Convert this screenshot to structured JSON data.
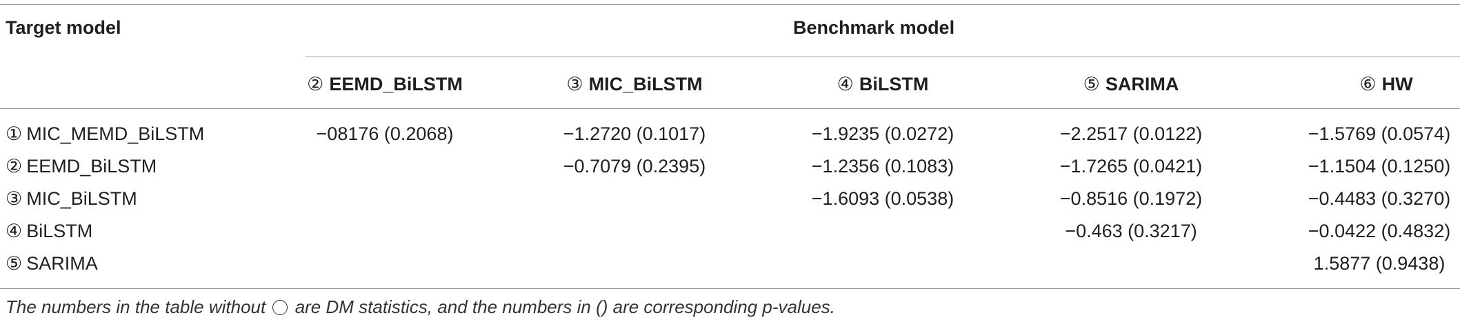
{
  "header": {
    "target_model": "Target model",
    "benchmark_model": "Benchmark model"
  },
  "columns": [
    {
      "num": "②",
      "name": "EEMD_BiLSTM"
    },
    {
      "num": "③",
      "name": "MIC_BiLSTM"
    },
    {
      "num": "④",
      "name": "BiLSTM"
    },
    {
      "num": "⑤",
      "name": "SARIMA"
    },
    {
      "num": "⑥",
      "name": "HW"
    }
  ],
  "rows": [
    {
      "num": "①",
      "name": "MIC_MEMD_BiLSTM",
      "values": [
        "−08176 (0.2068)",
        "−1.2720 (0.1017)",
        "−1.9235 (0.0272)",
        "−2.2517 (0.0122)",
        "−1.5769 (0.0574)"
      ]
    },
    {
      "num": "②",
      "name": "EEMD_BiLSTM",
      "values": [
        "",
        "−0.7079 (0.2395)",
        "−1.2356 (0.1083)",
        "−1.7265 (0.0421)",
        "−1.1504 (0.1250)"
      ]
    },
    {
      "num": "③",
      "name": "MIC_BiLSTM",
      "values": [
        "",
        "",
        "−1.6093 (0.0538)",
        "−0.8516 (0.1972)",
        "−0.4483 (0.3270)"
      ]
    },
    {
      "num": "④",
      "name": "BiLSTM",
      "values": [
        "",
        "",
        "",
        "−0.463 (0.3217)",
        "−0.0422 (0.4832)"
      ]
    },
    {
      "num": "⑤",
      "name": "SARIMA",
      "values": [
        "",
        "",
        "",
        "",
        "1.5877 (0.9438)"
      ]
    }
  ],
  "footnote": {
    "before_circle": "The numbers in the table without",
    "after_circle": "are DM statistics, and the numbers in () are corresponding p-values."
  }
}
